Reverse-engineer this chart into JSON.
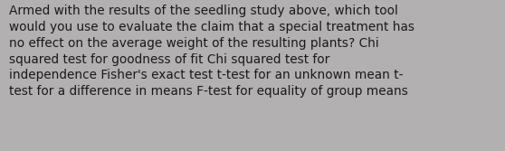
{
  "text": "Armed with the results of the seedling study above, which tool would you use to evaluate the claim that a special treatment has no effect on the average weight of the resulting plants? Chi squared test for goodness of fit Chi squared test for independence Fisher's exact test t-test for an unknown mean t-test for a difference in means F-test for equality of group means",
  "lines": [
    "Armed with the results of the seedling study above, which tool",
    "would you use to evaluate the claim that a special treatment has",
    "no effect on the average weight of the resulting plants? Chi",
    "squared test for goodness of fit Chi squared test for",
    "independence Fisher's exact test t-test for an unknown mean t-",
    "test for a difference in means F-test for equality of group means"
  ],
  "background_color": "#b2b0b0",
  "text_color": "#1a1a1a",
  "font_size": 9.8,
  "figwidth": 5.58,
  "figheight": 1.67,
  "dpi": 100
}
